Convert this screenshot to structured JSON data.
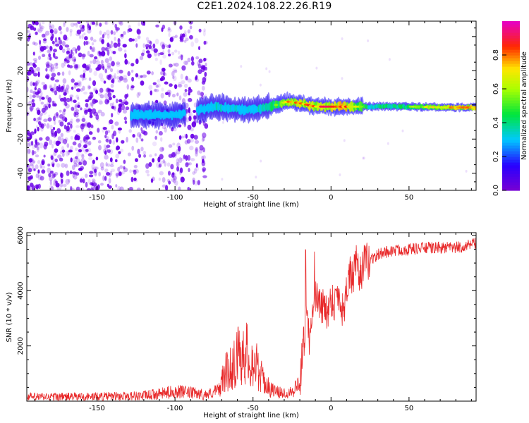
{
  "title": "C2E1.2024.108.22.26.R19",
  "colors": {
    "snr_line": "#e8292a",
    "noise_dots": "#6a00e8",
    "axis": "#000000"
  },
  "colorbar": {
    "label": "Normalized spectral amplitude",
    "ticks": [
      "0.0",
      "0.2",
      "0.4",
      "0.6",
      "0.8"
    ],
    "tick_values": [
      0.0,
      0.2,
      0.4,
      0.6,
      0.8
    ],
    "range": [
      0,
      1
    ],
    "colormap": "purple-blue-cyan-green-yellow-red-magenta"
  },
  "chart_data": [
    {
      "type": "heatmap",
      "title": "",
      "xlabel": "Height of straight line (km)",
      "ylabel": "Frequency (Hz)",
      "xlim": [
        -195,
        93
      ],
      "ylim": [
        -50,
        49
      ],
      "xticks": [
        -150,
        -100,
        -50,
        0,
        50
      ],
      "xtick_labels": [
        "-150",
        "-100",
        "-50",
        "0",
        "50"
      ],
      "yticks": [
        -40,
        -20,
        0,
        20,
        40
      ],
      "ytick_labels": [
        "-40",
        "-20",
        "0",
        "20",
        "40"
      ],
      "grid": false,
      "noise_region_km": [
        -195,
        -83
      ],
      "signal_ridge": [
        {
          "km": -125,
          "hz": -6,
          "amp": 0.3
        },
        {
          "km": -110,
          "hz": -6,
          "amp": 0.3
        },
        {
          "km": -100,
          "hz": -6,
          "amp": 0.25
        },
        {
          "km": -85,
          "hz": -3,
          "amp": 0.2
        },
        {
          "km": -75,
          "hz": -1,
          "amp": 0.4
        },
        {
          "km": -65,
          "hz": -2,
          "amp": 0.4
        },
        {
          "km": -55,
          "hz": -3,
          "amp": 0.35
        },
        {
          "km": -45,
          "hz": -2,
          "amp": 0.4
        },
        {
          "km": -35,
          "hz": 0,
          "amp": 0.55
        },
        {
          "km": -28,
          "hz": 2,
          "amp": 0.7
        },
        {
          "km": -20,
          "hz": 1,
          "amp": 0.75
        },
        {
          "km": -10,
          "hz": -1,
          "amp": 0.8
        },
        {
          "km": 0,
          "hz": -1,
          "amp": 0.85
        },
        {
          "km": 10,
          "hz": -1,
          "amp": 0.8
        },
        {
          "km": 25,
          "hz": -1,
          "amp": 0.45
        },
        {
          "km": 50,
          "hz": -1,
          "amp": 0.5
        },
        {
          "km": 75,
          "hz": -1.5,
          "amp": 0.75
        },
        {
          "km": 93,
          "hz": -1.5,
          "amp": 0.8
        }
      ]
    },
    {
      "type": "line",
      "title": "",
      "xlabel": "Height of straight line (km)",
      "ylabel": "SNR (10 * v/v)",
      "xlim": [
        -195,
        93
      ],
      "ylim": [
        0,
        6100
      ],
      "xticks": [
        -150,
        -100,
        -50,
        0,
        50
      ],
      "xtick_labels": [
        "-150",
        "-100",
        "-50",
        "0",
        "50"
      ],
      "yticks": [
        2000,
        4000,
        6000
      ],
      "ytick_labels": [
        "2000",
        "4000",
        "6000"
      ],
      "grid": false,
      "series": [
        {
          "x": [
            -195,
            -180,
            -160,
            -140,
            -120,
            -110,
            -100,
            -90,
            -80,
            -72,
            -68,
            -64,
            -60,
            -56,
            -52,
            -48,
            -44,
            -40,
            -36,
            -32,
            -28,
            -24,
            -20,
            -18,
            -16,
            -14,
            -12,
            -10,
            -8,
            -6,
            -4,
            -2,
            0,
            2,
            4,
            6,
            8,
            10,
            12,
            14,
            16,
            18,
            20,
            22,
            24,
            26,
            28,
            30,
            35,
            40,
            50,
            60,
            70,
            80,
            90,
            93
          ],
          "y": [
            150,
            150,
            160,
            170,
            200,
            260,
            350,
            300,
            230,
            400,
            1000,
            1200,
            1600,
            1900,
            1500,
            1300,
            800,
            500,
            350,
            300,
            300,
            420,
            650,
            1900,
            3000,
            2200,
            3300,
            3800,
            3700,
            3300,
            3600,
            3100,
            3800,
            3500,
            4000,
            3600,
            3200,
            4200,
            4600,
            4400,
            5000,
            4500,
            4800,
            5100,
            5000,
            5200,
            5200,
            5300,
            5400,
            5450,
            5500,
            5550,
            5550,
            5550,
            5650,
            5700
          ]
        }
      ]
    }
  ]
}
